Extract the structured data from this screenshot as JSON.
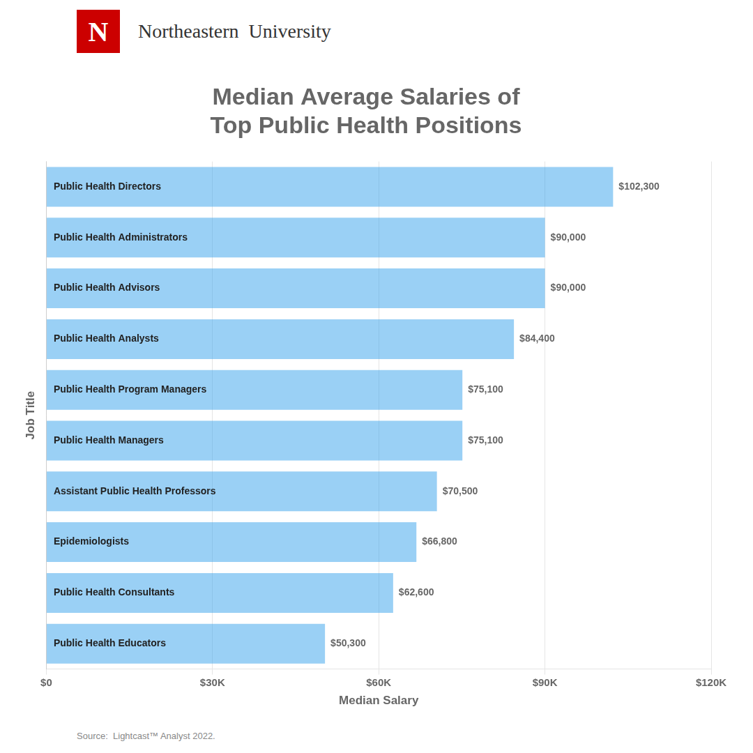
{
  "chart_data": {
    "type": "bar",
    "orientation": "horizontal",
    "title": "Median Average Salaries of\nTop Public Health Positions",
    "xlabel": "Median Salary",
    "ylabel": "Job Title",
    "annotations": [
      {
        "text": "N",
        "color": "#cc0000"
      },
      {
        "text": "Northeastern  University"
      },
      {
        "text": "Source:  Lightcast™ Analyst 2022."
      }
    ],
    "categories": [
      "Public Health Directors",
      "Public Health Administrators",
      "Public Health Advisors",
      "Public Health Analysts",
      "Public Health Program Managers",
      "Public Health Managers",
      "Assistant Public Health Professors",
      "Epidemiologists",
      "Public Health Consultants",
      "Public Health Educators"
    ],
    "values": [
      102300,
      90000,
      90000,
      84400,
      75100,
      75100,
      70500,
      66800,
      62600,
      50300
    ],
    "value_labels": [
      "$102,300",
      "$90,000",
      "$90,000",
      "$84,400",
      "$75,100",
      "$75,100",
      "$70,500",
      "$66,800",
      "$62,600",
      "$50,300"
    ],
    "data_labels": true,
    "xlim": [
      0,
      120000
    ],
    "xticks": [
      {
        "value": 0,
        "label": "$0"
      },
      {
        "value": 30000,
        "label": "$30K"
      },
      {
        "value": 60000,
        "label": "$60K"
      },
      {
        "value": 90000,
        "label": "$90K"
      },
      {
        "value": 120000,
        "label": "$120K"
      }
    ],
    "grid": true,
    "tick_labels": "x"
  }
}
